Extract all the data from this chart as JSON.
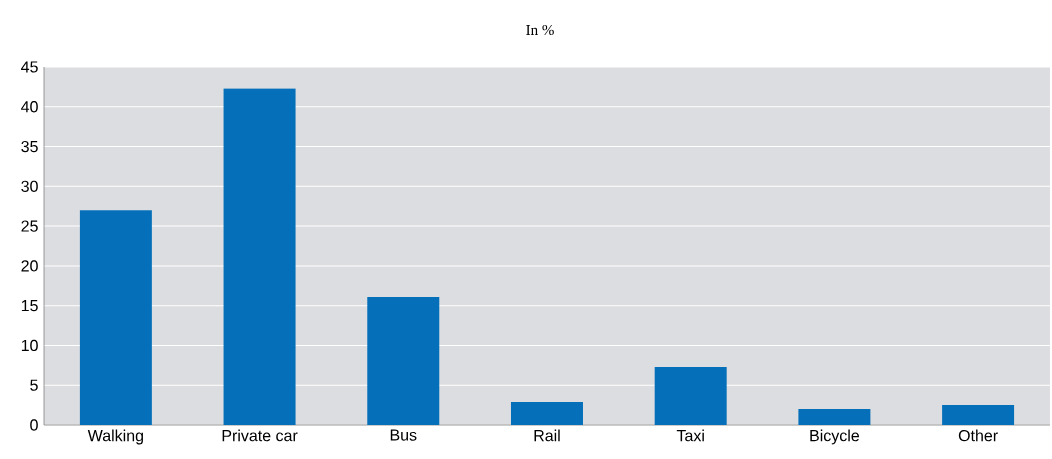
{
  "chart_data": {
    "type": "bar",
    "title": "In %",
    "categories": [
      "Walking",
      "Private car",
      "Bus",
      "Rail",
      "Taxi",
      "Bicycle",
      "Other"
    ],
    "values": [
      27,
      42.3,
      16.1,
      2.9,
      7.3,
      2.0,
      2.5
    ],
    "color": "#0570b9",
    "ylim": [
      0,
      45
    ],
    "yticks": [
      0,
      5,
      10,
      15,
      20,
      25,
      30,
      35,
      40,
      45
    ],
    "grid": "y"
  }
}
